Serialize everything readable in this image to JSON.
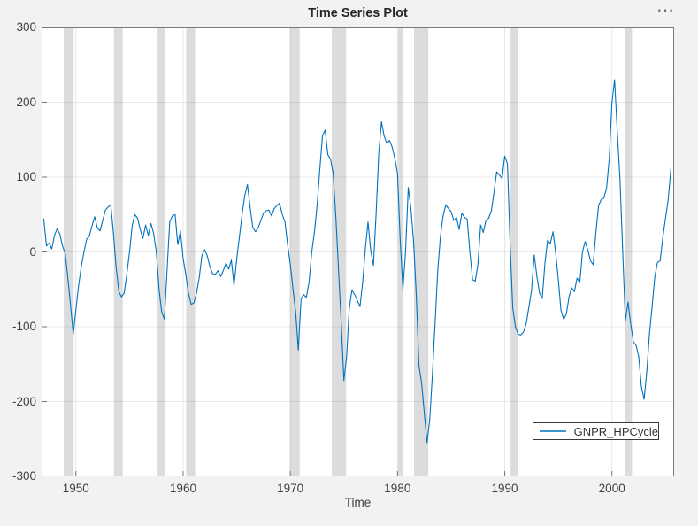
{
  "figure": {
    "title": "Time Series Plot",
    "options_button": "⋯",
    "background_color": "#f2f2f2"
  },
  "axes": {
    "x_label": "Time",
    "x_ticks": [
      1950,
      1960,
      1970,
      1980,
      1990,
      2000
    ],
    "y_ticks": [
      -300,
      -200,
      -100,
      0,
      100,
      200,
      300
    ],
    "x_domain": [
      1946.8,
      2005.8
    ],
    "y_domain": [
      -300,
      300
    ],
    "grid_color": "#e8e8e8",
    "axis_color": "#777777",
    "tick_label_color": "#3f3f3f",
    "plot_background": "#ffffff"
  },
  "legend": {
    "label": "GNPR_HPCycle",
    "line_color": "#0072BD"
  },
  "chart_data": {
    "type": "line",
    "title": "Time Series Plot",
    "xlabel": "Time",
    "ylabel": "",
    "x_unit": "year, quarterly observations",
    "x_start": 1947.0,
    "x_step": 0.25,
    "x_end": 2005.5,
    "ylim": [
      -300,
      300
    ],
    "grid": true,
    "legend_position": "southeast",
    "band_color": "#808080",
    "band_opacity": 0.28,
    "recession_bands": [
      [
        1948.87,
        1949.79
      ],
      [
        1953.54,
        1954.37
      ],
      [
        1957.62,
        1958.29
      ],
      [
        1960.29,
        1961.12
      ],
      [
        1969.96,
        1970.87
      ],
      [
        1973.87,
        1975.21
      ],
      [
        1980.04,
        1980.54
      ],
      [
        1981.54,
        1982.87
      ],
      [
        1990.54,
        1991.21
      ],
      [
        2001.21,
        2001.87
      ]
    ],
    "series": [
      {
        "name": "GNPR_HPCycle",
        "color": "#0072BD",
        "values": [
          44,
          8,
          12,
          4,
          22,
          31,
          24,
          8,
          -2,
          -35,
          -71,
          -110,
          -77,
          -45,
          -20,
          0,
          17,
          21,
          35,
          47,
          32,
          28,
          42,
          56,
          60,
          63,
          25,
          -20,
          -53,
          -60,
          -55,
          -30,
          0,
          35,
          50,
          45,
          30,
          18,
          36,
          22,
          38,
          25,
          0,
          -49,
          -80,
          -90,
          -25,
          40,
          48,
          50,
          10,
          28,
          -9,
          -30,
          -55,
          -70,
          -68,
          -55,
          -35,
          -5,
          3,
          -5,
          -20,
          -29,
          -30,
          -25,
          -33,
          -25,
          -15,
          -23,
          -11,
          -45,
          -9,
          20,
          50,
          75,
          90,
          60,
          33,
          27,
          32,
          42,
          52,
          55,
          56,
          48,
          58,
          62,
          65,
          50,
          40,
          10,
          -17,
          -50,
          -80,
          -131,
          -63,
          -57,
          -61,
          -40,
          0,
          26,
          62,
          110,
          155,
          163,
          130,
          124,
          105,
          45,
          -25,
          -95,
          -172,
          -140,
          -75,
          -51,
          -57,
          -65,
          -73,
          -40,
          5,
          40,
          2,
          -18,
          50,
          131,
          174,
          155,
          145,
          149,
          140,
          125,
          105,
          15,
          -50,
          0,
          86,
          58,
          14,
          -57,
          -152,
          -176,
          -215,
          -255,
          -225,
          -165,
          -95,
          -25,
          20,
          48,
          63,
          58,
          54,
          42,
          46,
          30,
          52,
          46,
          44,
          0,
          -37,
          -39,
          -17,
          36,
          26,
          42,
          45,
          55,
          80,
          107,
          103,
          98,
          128,
          118,
          10,
          -75,
          -100,
          -110,
          -111,
          -107,
          -96,
          -74,
          -52,
          -4,
          -33,
          -55,
          -62,
          -15,
          16,
          11,
          27,
          -1,
          -37,
          -78,
          -90,
          -83,
          -60,
          -48,
          -53,
          -35,
          -41,
          0,
          14,
          3,
          -12,
          -17,
          25,
          62,
          70,
          72,
          86,
          125,
          199,
          230,
          160,
          97,
          3,
          -92,
          -67,
          -96,
          -120,
          -125,
          -140,
          -180,
          -197,
          -160,
          -110,
          -72,
          -33,
          -14,
          -12,
          20,
          45,
          70,
          112
        ]
      }
    ]
  }
}
